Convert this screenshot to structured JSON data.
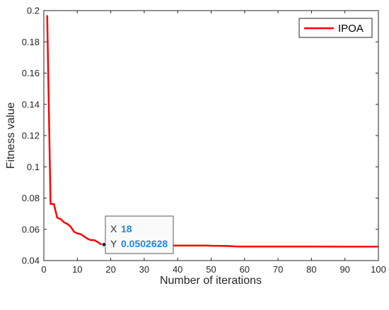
{
  "chart_data": {
    "type": "line",
    "title": "",
    "xlabel": "Number of iterations",
    "ylabel": "Fitness value",
    "xlim": [
      0,
      100
    ],
    "ylim": [
      0.04,
      0.2
    ],
    "xticks": [
      0,
      10,
      20,
      30,
      40,
      50,
      60,
      70,
      80,
      90,
      100
    ],
    "yticks": [
      0.04,
      0.06,
      0.08,
      0.1,
      0.12,
      0.14,
      0.16,
      0.18,
      0.2
    ],
    "ytick_labels": [
      "0.04",
      "0.06",
      "0.08",
      "0.1",
      "0.12",
      "0.14",
      "0.16",
      "0.18",
      "0.2"
    ],
    "grid": false,
    "legend": "top-right",
    "series": [
      {
        "name": "IPOA",
        "color": "#ff0000",
        "x": [
          1,
          2,
          3,
          4,
          5,
          6,
          7,
          8,
          9,
          10,
          11,
          12,
          13,
          14,
          15,
          16,
          17,
          18,
          20,
          22,
          25,
          28,
          30,
          40,
          49,
          50,
          55,
          58,
          60,
          70,
          80,
          90,
          100
        ],
        "y": [
          0.197,
          0.0762,
          0.0762,
          0.0674,
          0.0666,
          0.0645,
          0.0635,
          0.0617,
          0.0585,
          0.0574,
          0.0569,
          0.0555,
          0.054,
          0.0531,
          0.0531,
          0.052,
          0.0505,
          0.0502628,
          0.0501,
          0.0498,
          0.0497,
          0.0497,
          0.0496,
          0.0496,
          0.0496,
          0.0495,
          0.0493,
          0.049,
          0.049,
          0.049,
          0.049,
          0.0489,
          0.0489
        ]
      }
    ],
    "datatip": {
      "x": 18,
      "y": 0.0502628,
      "x_key": "X",
      "y_key": "Y",
      "x_text": "18",
      "y_text": "0.0502628"
    }
  }
}
